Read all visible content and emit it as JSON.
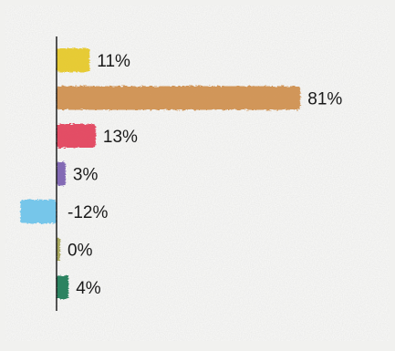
{
  "chart_data": {
    "type": "bar",
    "orientation": "horizontal",
    "title": "",
    "xlabel": "",
    "ylabel": "",
    "values": [
      11,
      81,
      13,
      3,
      -12,
      0,
      4
    ],
    "labels": [
      "11%",
      "81%",
      "13%",
      "3%",
      "-12%",
      "0%",
      "4%"
    ],
    "colors": [
      "#e6c826",
      "#cf8f4e",
      "#e2405a",
      "#7a5fb0",
      "#6cc3ea",
      "#a5a455",
      "#1f7a55"
    ],
    "xlim": [
      -12,
      81
    ],
    "grid": false,
    "legend": "none"
  }
}
